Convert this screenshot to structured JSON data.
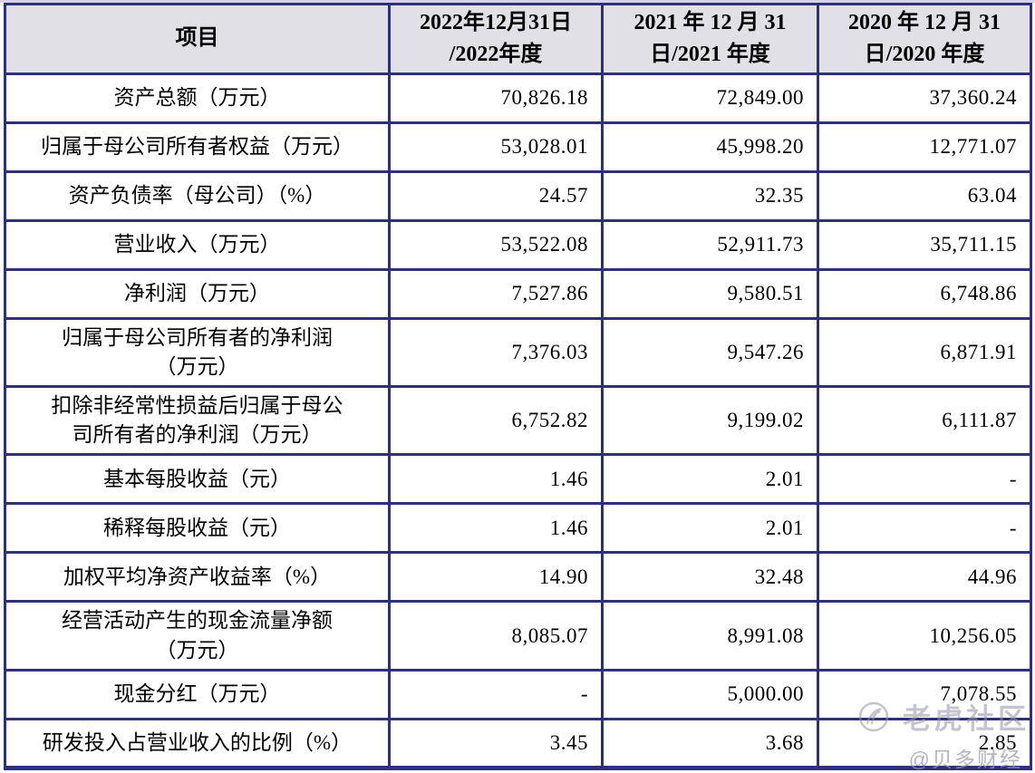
{
  "table": {
    "columns": [
      "项目",
      "2022年12月31日\n/2022年度",
      "2021 年 12 月 31\n日/2021 年度",
      "2020 年 12 月 31\n日/2020 年度"
    ],
    "rows": [
      {
        "label": "资产总额（万元）",
        "v2022": "70,826.18",
        "v2021": "72,849.00",
        "v2020": "37,360.24"
      },
      {
        "label": "归属于母公司所有者权益（万元）",
        "v2022": "53,028.01",
        "v2021": "45,998.20",
        "v2020": "12,771.07"
      },
      {
        "label": "资产负债率（母公司）（%）",
        "v2022": "24.57",
        "v2021": "32.35",
        "v2020": "63.04"
      },
      {
        "label": "营业收入（万元）",
        "v2022": "53,522.08",
        "v2021": "52,911.73",
        "v2020": "35,711.15"
      },
      {
        "label": "净利润（万元）",
        "v2022": "7,527.86",
        "v2021": "9,580.51",
        "v2020": "6,748.86"
      },
      {
        "label": "归属于母公司所有者的净利润\n（万元）",
        "v2022": "7,376.03",
        "v2021": "9,547.26",
        "v2020": "6,871.91"
      },
      {
        "label": "扣除非经常性损益后归属于母公\n司所有者的净利润（万元）",
        "v2022": "6,752.82",
        "v2021": "9,199.02",
        "v2020": "6,111.87"
      },
      {
        "label": "基本每股收益（元）",
        "v2022": "1.46",
        "v2021": "2.01",
        "v2020": "-"
      },
      {
        "label": "稀释每股收益（元）",
        "v2022": "1.46",
        "v2021": "2.01",
        "v2020": "-"
      },
      {
        "label": "加权平均净资产收益率（%）",
        "v2022": "14.90",
        "v2021": "32.48",
        "v2020": "44.96"
      },
      {
        "label": "经营活动产生的现金流量净额\n（万元）",
        "v2022": "8,085.07",
        "v2021": "8,991.08",
        "v2020": "10,256.05"
      },
      {
        "label": "现金分红（万元）",
        "v2022": "-",
        "v2021": "5,000.00",
        "v2020": "7,078.55"
      },
      {
        "label": "研发投入占营业收入的比例（%）",
        "v2022": "3.45",
        "v2021": "3.68",
        "v2020": "2.85"
      }
    ]
  },
  "watermark": {
    "community": "老虎社区",
    "handle": "@贝多财经",
    "logo_icon": "tiger-community-logo-icon"
  },
  "colors": {
    "border": "#2e3078",
    "header_bg": "#e0e0e6",
    "watermark_gray": "#9494a5"
  }
}
